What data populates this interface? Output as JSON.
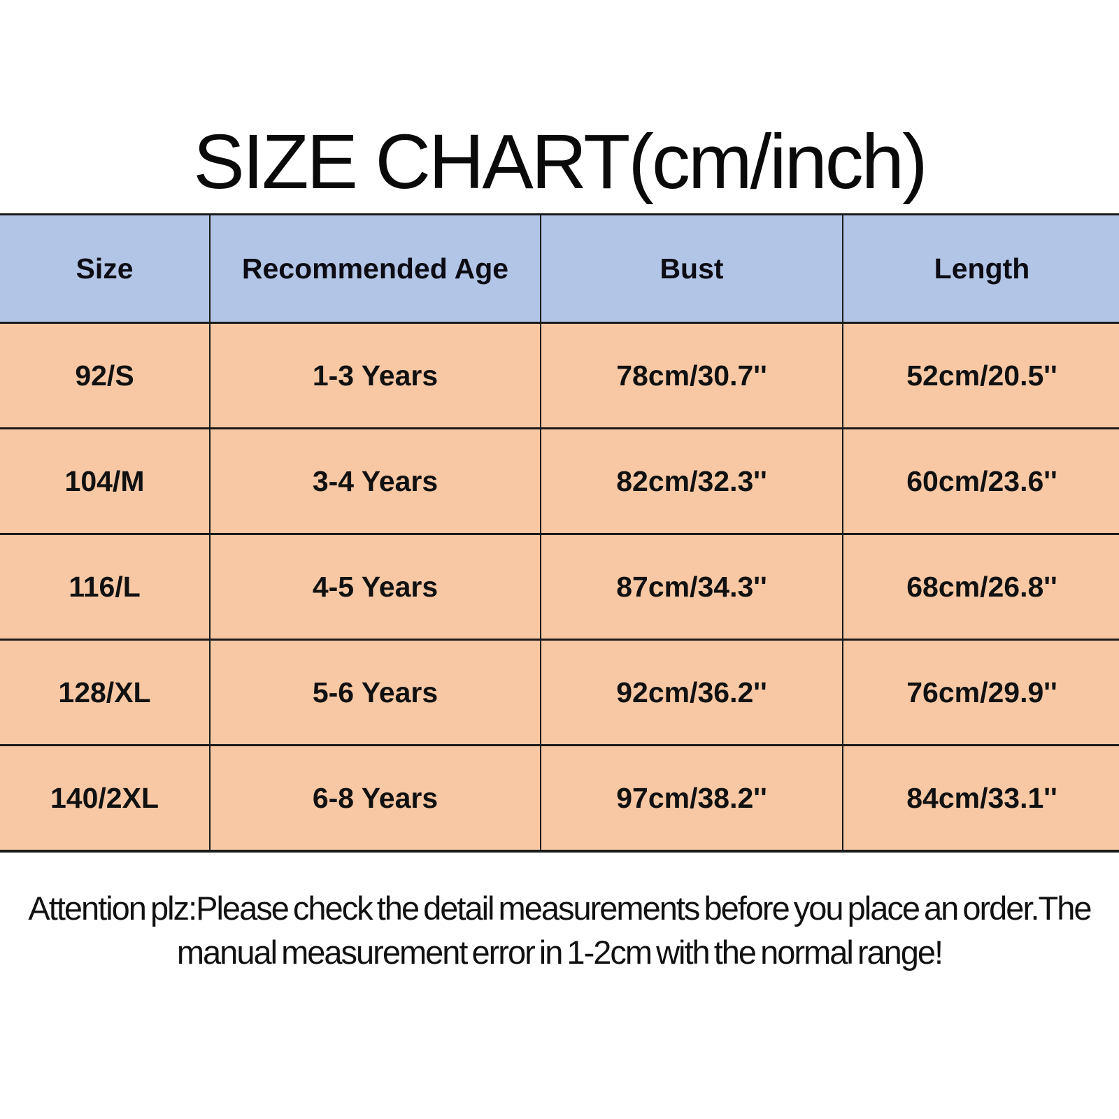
{
  "title": "SIZE CHART(cm/inch)",
  "chart_data": {
    "type": "table",
    "title": "SIZE CHART(cm/inch)",
    "unit_note": "cm/inch",
    "columns": [
      "Size",
      "Recommended Age",
      "Bust",
      "Length"
    ],
    "rows": [
      [
        "92/S",
        "1-3 Years",
        "78cm/30.7''",
        "52cm/20.5''"
      ],
      [
        "104/M",
        "3-4 Years",
        "82cm/32.3''",
        "60cm/23.6''"
      ],
      [
        "116/L",
        "4-5 Years",
        "87cm/34.3''",
        "68cm/26.8''"
      ],
      [
        "128/XL",
        "5-6 Years",
        "92cm/36.2''",
        "76cm/29.9''"
      ],
      [
        "140/2XL",
        "6-8 Years",
        "97cm/38.2''",
        "84cm/33.1''"
      ]
    ],
    "layout": {
      "header_position": "top",
      "grid": true
    }
  },
  "note": {
    "line1": "Attention plz:Please check the detail measurements before you place an order.The",
    "line2": "manual measurement error in 1-2cm with the normal range!"
  },
  "colors": {
    "header_bg": "#b2c5e6",
    "row_bg": "#f8c8a4",
    "border": "#1b1b1b",
    "text": "#000000",
    "background": "#ffffff"
  }
}
